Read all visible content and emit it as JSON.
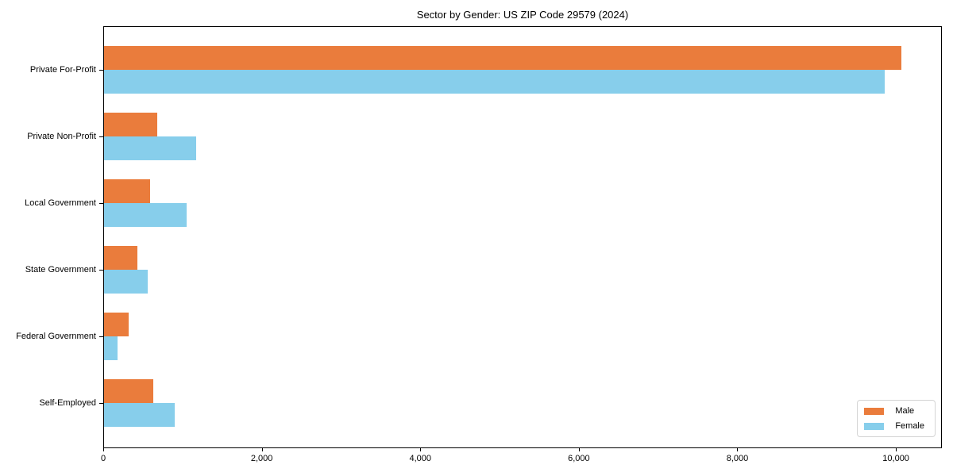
{
  "figure": {
    "title": "Sector by Gender: US ZIP Code 29579 (2024)"
  },
  "colors": {
    "male": "#EA7C3C",
    "female": "#87CEEB",
    "spine": "#000000",
    "legend_border": "#d4d4d4",
    "background": "#ffffff"
  },
  "chart_data": {
    "type": "bar",
    "orientation": "horizontal",
    "title": "Sector by Gender: US ZIP Code 29579 (2024)",
    "categories": [
      "Private For-Profit",
      "Private Non-Profit",
      "Local Government",
      "State Government",
      "Federal Government",
      "Self-Employed"
    ],
    "series": [
      {
        "name": "Male",
        "color": "#EA7C3C",
        "values": [
          10080,
          670,
          580,
          420,
          310,
          620
        ]
      },
      {
        "name": "Female",
        "color": "#87CEEB",
        "values": [
          9870,
          1160,
          1040,
          550,
          170,
          890
        ]
      }
    ],
    "xlabel": "",
    "ylabel": "",
    "xlim": [
      0,
      10580
    ],
    "x_ticks": [
      0,
      2000,
      4000,
      6000,
      8000,
      10000
    ],
    "x_tick_labels": [
      "0",
      "2,000",
      "4,000",
      "6,000",
      "8,000",
      "10,000"
    ],
    "grid": false,
    "legend": {
      "position": "lower-right",
      "entries": [
        "Male",
        "Female"
      ]
    }
  }
}
